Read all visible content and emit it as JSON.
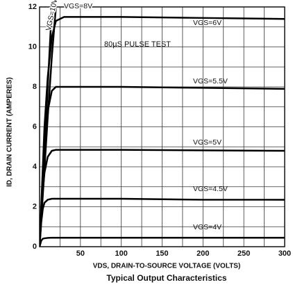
{
  "chart_data": {
    "type": "line",
    "title": "Typical Output Characteristics",
    "x_label": "VDS, DRAIN-TO-SOURCE VOLTAGE (VOLTS)",
    "y_label": "ID, DRAIN CURRENT (AMPERES)",
    "annotation": "80µS PULSE TEST",
    "x": [
      0,
      2,
      4,
      6,
      10,
      15,
      20,
      30,
      50,
      100,
      200,
      300
    ],
    "series": [
      {
        "name": "VGS=4V",
        "color": "#000000",
        "values": [
          0,
          0.3,
          0.4,
          0.42,
          0.44,
          0.45,
          0.45,
          0.45,
          0.45,
          0.45,
          0.45,
          0.45
        ]
      },
      {
        "name": "VGS=4.5V",
        "color": "#000000",
        "values": [
          0,
          1.2,
          1.9,
          2.2,
          2.35,
          2.4,
          2.4,
          2.4,
          2.4,
          2.4,
          2.35,
          2.35
        ]
      },
      {
        "name": "VGS=5V",
        "color": "#000000",
        "values": [
          0,
          1.5,
          2.8,
          3.7,
          4.5,
          4.8,
          4.85,
          4.85,
          4.85,
          4.85,
          4.82,
          4.8
        ]
      },
      {
        "name": "VGS=5.5V",
        "color": "#000000",
        "values": [
          0,
          1.8,
          3.5,
          5,
          6.8,
          7.8,
          8,
          8,
          8,
          8,
          7.95,
          7.9
        ]
      },
      {
        "name": "VGS=6V",
        "color": "#000000",
        "values": [
          0,
          2,
          4,
          6,
          8.5,
          10.5,
          11.3,
          11.5,
          11.5,
          11.5,
          11.45,
          11.4
        ]
      },
      {
        "name": "VGS=8V",
        "color": "#000000",
        "values": [
          0,
          1.3,
          2.6,
          3.9,
          6.5,
          9.5,
          12,
          null,
          null,
          null,
          null,
          null
        ]
      },
      {
        "name": "VGS=10V",
        "color": "#000000",
        "values": [
          0,
          1.6,
          3.2,
          4.8,
          8,
          12,
          null,
          null,
          null,
          null,
          null,
          null
        ]
      }
    ],
    "xlim": [
      0,
      300
    ],
    "xticks": [
      50,
      100,
      150,
      200,
      250,
      300
    ],
    "minor_xticks": [
      25,
      75,
      125,
      175,
      225,
      275
    ],
    "ylim": [
      0,
      12
    ],
    "yticks": [
      0,
      2,
      4,
      6,
      8,
      10,
      12
    ],
    "minor_yticks": [
      1,
      3,
      5,
      7,
      9,
      11
    ],
    "grid": true
  }
}
